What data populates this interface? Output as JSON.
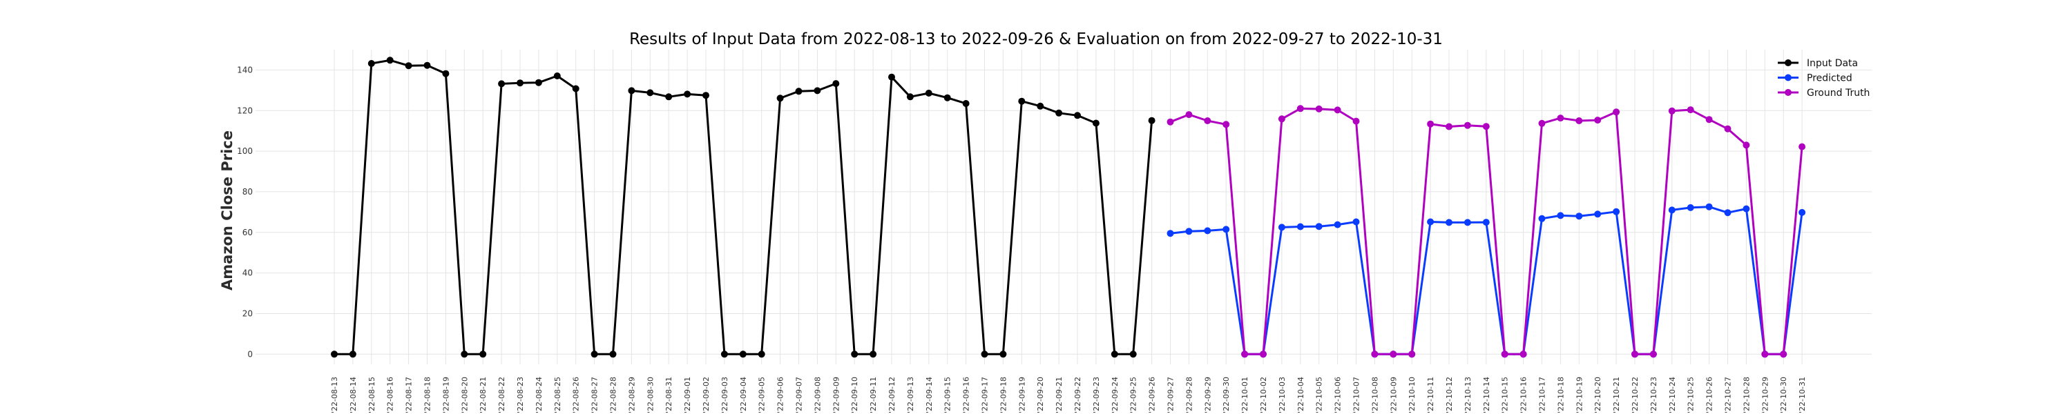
{
  "chart_data": {
    "type": "line",
    "title": "Results of Input Data from 2022-08-13 to 2022-09-26 & Evaluation on from 2022-09-27 to 2022-10-31",
    "xlabel": "",
    "ylabel": "Amazon Close Price",
    "ylim": [
      -5,
      150
    ],
    "yticks": [
      0,
      20,
      40,
      60,
      80,
      100,
      120,
      140
    ],
    "grid": true,
    "legend_position": "top-right",
    "colors": {
      "Input Data": "#000000",
      "Predicted": "#0a3cff",
      "Ground Truth": "#b000c0"
    },
    "categories": [
      "2022-08-13",
      "2022-08-14",
      "2022-08-15",
      "2022-08-16",
      "2022-08-17",
      "2022-08-18",
      "2022-08-19",
      "2022-08-20",
      "2022-08-21",
      "2022-08-22",
      "2022-08-23",
      "2022-08-24",
      "2022-08-25",
      "2022-08-26",
      "2022-08-27",
      "2022-08-28",
      "2022-08-29",
      "2022-08-30",
      "2022-08-31",
      "2022-09-01",
      "2022-09-02",
      "2022-09-03",
      "2022-09-04",
      "2022-09-05",
      "2022-09-06",
      "2022-09-07",
      "2022-09-08",
      "2022-09-09",
      "2022-09-10",
      "2022-09-11",
      "2022-09-12",
      "2022-09-13",
      "2022-09-14",
      "2022-09-15",
      "2022-09-16",
      "2022-09-17",
      "2022-09-18",
      "2022-09-19",
      "2022-09-20",
      "2022-09-21",
      "2022-09-22",
      "2022-09-23",
      "2022-09-24",
      "2022-09-25",
      "2022-09-26",
      "2022-09-27",
      "2022-09-28",
      "2022-09-29",
      "2022-09-30",
      "2022-10-01",
      "2022-10-02",
      "2022-10-03",
      "2022-10-04",
      "2022-10-05",
      "2022-10-06",
      "2022-10-07",
      "2022-10-08",
      "2022-10-09",
      "2022-10-10",
      "2022-10-11",
      "2022-10-12",
      "2022-10-13",
      "2022-10-14",
      "2022-10-15",
      "2022-10-16",
      "2022-10-17",
      "2022-10-18",
      "2022-10-19",
      "2022-10-20",
      "2022-10-21",
      "2022-10-22",
      "2022-10-23",
      "2022-10-24",
      "2022-10-25",
      "2022-10-26",
      "2022-10-27",
      "2022-10-28",
      "2022-10-29",
      "2022-10-30",
      "2022-10-31"
    ],
    "tick_labels": [
      "'22-08-13",
      "'22-08-14",
      "'22-08-15",
      "'22-08-16",
      "'22-08-17",
      "'22-08-18",
      "'22-08-19",
      "'22-08-20",
      "'22-08-21",
      "'22-08-22",
      "'22-08-23",
      "'22-08-24",
      "'22-08-25",
      "'22-08-26",
      "'22-08-27",
      "'22-08-28",
      "'22-08-29",
      "'22-08-30",
      "'22-08-31",
      "'22-09-01",
      "'22-09-02",
      "'22-09-03",
      "'22-09-04",
      "'22-09-05",
      "'22-09-06",
      "'22-09-07",
      "'22-09-08",
      "'22-09-09",
      "'22-09-10",
      "'22-09-11",
      "'22-09-12",
      "'22-09-13",
      "'22-09-14",
      "'22-09-15",
      "'22-09-16",
      "'22-09-17",
      "'22-09-18",
      "'22-09-19",
      "'22-09-20",
      "'22-09-21",
      "'22-09-22",
      "'22-09-23",
      "'22-09-24",
      "'22-09-25",
      "'22-09-26",
      "'22-09-27",
      "'22-09-28",
      "'22-09-29",
      "'22-09-30",
      "'22-10-01",
      "'22-10-02",
      "'22-10-03",
      "'22-10-04",
      "'22-10-05",
      "'22-10-06",
      "'22-10-07",
      "'22-10-08",
      "'22-10-09",
      "'22-10-10",
      "'22-10-11",
      "'22-10-12",
      "'22-10-13",
      "'22-10-14",
      "'22-10-15",
      "'22-10-16",
      "'22-10-17",
      "'22-10-18",
      "'22-10-19",
      "'22-10-20",
      "'22-10-21",
      "'22-10-22",
      "'22-10-23",
      "'22-10-24",
      "'22-10-25",
      "'22-10-26",
      "'22-10-27",
      "'22-10-28",
      "'22-10-29",
      "'22-10-30",
      "'22-10-31"
    ],
    "series": [
      {
        "name": "Input Data",
        "x": [
          "2022-08-13",
          "2022-08-14",
          "2022-08-15",
          "2022-08-16",
          "2022-08-17",
          "2022-08-18",
          "2022-08-19",
          "2022-08-20",
          "2022-08-21",
          "2022-08-22",
          "2022-08-23",
          "2022-08-24",
          "2022-08-25",
          "2022-08-26",
          "2022-08-27",
          "2022-08-28",
          "2022-08-29",
          "2022-08-30",
          "2022-08-31",
          "2022-09-01",
          "2022-09-02",
          "2022-09-03",
          "2022-09-04",
          "2022-09-05",
          "2022-09-06",
          "2022-09-07",
          "2022-09-08",
          "2022-09-09",
          "2022-09-10",
          "2022-09-11",
          "2022-09-12",
          "2022-09-13",
          "2022-09-14",
          "2022-09-15",
          "2022-09-16",
          "2022-09-17",
          "2022-09-18",
          "2022-09-19",
          "2022-09-20",
          "2022-09-21",
          "2022-09-22",
          "2022-09-23",
          "2022-09-24",
          "2022-09-25",
          "2022-09-26"
        ],
        "values": [
          0,
          0,
          143.2,
          144.8,
          142.1,
          142.3,
          138.2,
          0,
          0,
          133.2,
          133.6,
          133.8,
          137.1,
          130.8,
          0,
          0,
          129.8,
          128.8,
          126.8,
          128.1,
          127.5,
          0,
          0,
          0,
          126.1,
          129.5,
          129.8,
          133.3,
          0,
          0,
          136.5,
          126.8,
          128.6,
          126.3,
          123.5,
          0,
          0,
          124.6,
          122.2,
          118.8,
          117.6,
          113.8,
          0,
          0,
          115.1
        ]
      },
      {
        "name": "Predicted",
        "x": [
          "2022-09-27",
          "2022-09-28",
          "2022-09-29",
          "2022-09-30",
          "2022-10-01",
          "2022-10-02",
          "2022-10-03",
          "2022-10-04",
          "2022-10-05",
          "2022-10-06",
          "2022-10-07",
          "2022-10-08",
          "2022-10-09",
          "2022-10-10",
          "2022-10-11",
          "2022-10-12",
          "2022-10-13",
          "2022-10-14",
          "2022-10-15",
          "2022-10-16",
          "2022-10-17",
          "2022-10-18",
          "2022-10-19",
          "2022-10-20",
          "2022-10-21",
          "2022-10-22",
          "2022-10-23",
          "2022-10-24",
          "2022-10-25",
          "2022-10-26",
          "2022-10-27",
          "2022-10-28",
          "2022-10-29",
          "2022-10-30",
          "2022-10-31"
        ],
        "values": [
          59.5,
          60.5,
          60.8,
          61.5,
          0,
          0,
          62.5,
          62.8,
          62.9,
          63.8,
          65.2,
          0,
          0,
          0,
          65.2,
          64.9,
          64.9,
          65.0,
          0,
          0,
          66.8,
          68.3,
          68.0,
          69.0,
          70.2,
          0,
          0,
          71.0,
          72.2,
          72.6,
          69.7,
          71.6,
          0,
          0,
          69.8
        ]
      },
      {
        "name": "Ground Truth",
        "x": [
          "2022-09-27",
          "2022-09-28",
          "2022-09-29",
          "2022-09-30",
          "2022-10-01",
          "2022-10-02",
          "2022-10-03",
          "2022-10-04",
          "2022-10-05",
          "2022-10-06",
          "2022-10-07",
          "2022-10-08",
          "2022-10-09",
          "2022-10-10",
          "2022-10-11",
          "2022-10-12",
          "2022-10-13",
          "2022-10-14",
          "2022-10-15",
          "2022-10-16",
          "2022-10-17",
          "2022-10-18",
          "2022-10-19",
          "2022-10-20",
          "2022-10-21",
          "2022-10-22",
          "2022-10-23",
          "2022-10-24",
          "2022-10-25",
          "2022-10-26",
          "2022-10-27",
          "2022-10-28",
          "2022-10-29",
          "2022-10-30",
          "2022-10-31"
        ],
        "values": [
          114.4,
          118.0,
          115.0,
          113.2,
          0,
          0,
          115.9,
          121.0,
          120.8,
          120.3,
          114.8,
          0,
          0,
          0,
          113.4,
          112.1,
          112.7,
          112.2,
          0,
          0,
          113.7,
          116.3,
          115.0,
          115.3,
          119.3,
          0,
          0,
          119.8,
          120.4,
          115.6,
          111.0,
          103.0,
          0,
          0,
          102.2
        ]
      }
    ]
  }
}
